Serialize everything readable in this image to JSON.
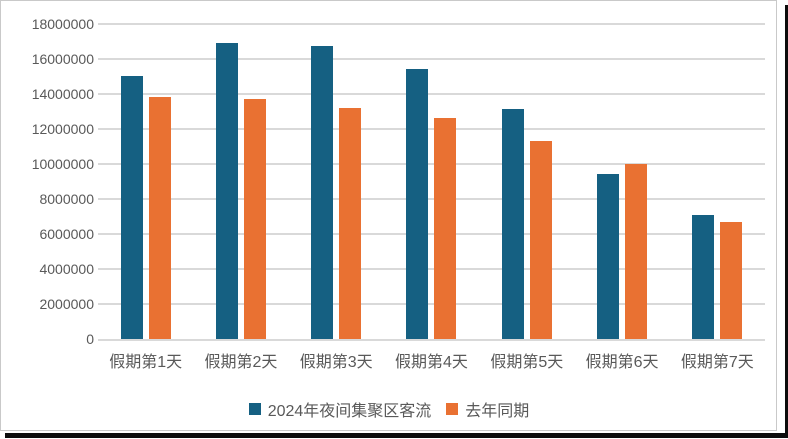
{
  "chart_data": {
    "type": "bar",
    "title": "",
    "xlabel": "",
    "ylabel": "",
    "categories": [
      "假期第1天",
      "假期第2天",
      "假期第3天",
      "假期第4天",
      "假期第5天",
      "假期第6天",
      "假期第7天"
    ],
    "series": [
      {
        "name": "2024年夜间集聚区客流",
        "color": "#156082",
        "values": [
          15000000,
          16900000,
          16700000,
          15400000,
          13100000,
          9400000,
          7100000
        ]
      },
      {
        "name": "去年同期",
        "color": "#E97132",
        "values": [
          13800000,
          13700000,
          13200000,
          12600000,
          11300000,
          10000000,
          6700000
        ]
      }
    ],
    "ylim": [
      0,
      18000000
    ],
    "ytick_interval": 2000000,
    "yticks": [
      "18000000",
      "16000000",
      "14000000",
      "12000000",
      "10000000",
      "8000000",
      "6000000",
      "4000000",
      "2000000",
      "0"
    ],
    "grid": true,
    "legend_position": "bottom"
  },
  "colors": {
    "gridline": "#d9d9d9",
    "axis_text": "#595959",
    "frame_border": "#c9c9c9",
    "shadow": "#0c0c0c",
    "background": "#ffffff"
  }
}
